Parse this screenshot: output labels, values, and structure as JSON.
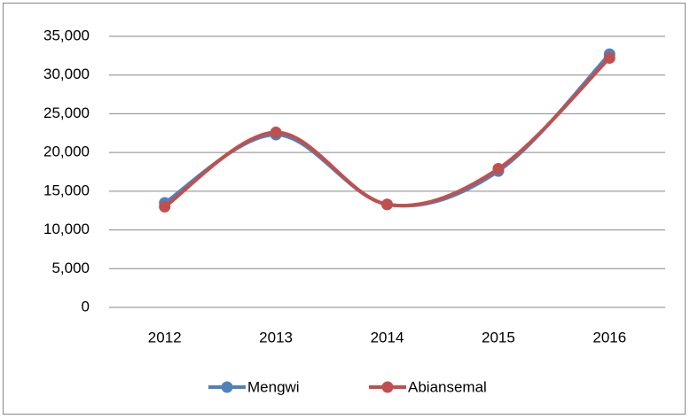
{
  "chart_data": {
    "type": "line",
    "categories": [
      "2012",
      "2013",
      "2014",
      "2015",
      "2016"
    ],
    "series": [
      {
        "name": "Mengwi",
        "color": "#4f81bd",
        "values": [
          13500,
          22300,
          13300,
          17600,
          32700
        ]
      },
      {
        "name": "Abiansemal",
        "color": "#c0504d",
        "values": [
          13000,
          22600,
          13300,
          17900,
          32200
        ]
      }
    ],
    "ylim": [
      0,
      35000
    ],
    "yticks": [
      0,
      {
        "value": 5000,
        "label": "5,000"
      },
      {
        "value": 10000,
        "label": "10,000"
      },
      {
        "value": 15000,
        "label": "15,000"
      },
      {
        "value": 20000,
        "label": "20,000"
      },
      {
        "value": 25000,
        "label": "25,000"
      },
      {
        "value": 30000,
        "label": "30,000"
      },
      {
        "value": 35000,
        "label": "35,000"
      }
    ],
    "grid": true,
    "smooth": true,
    "legend": "bottom"
  }
}
